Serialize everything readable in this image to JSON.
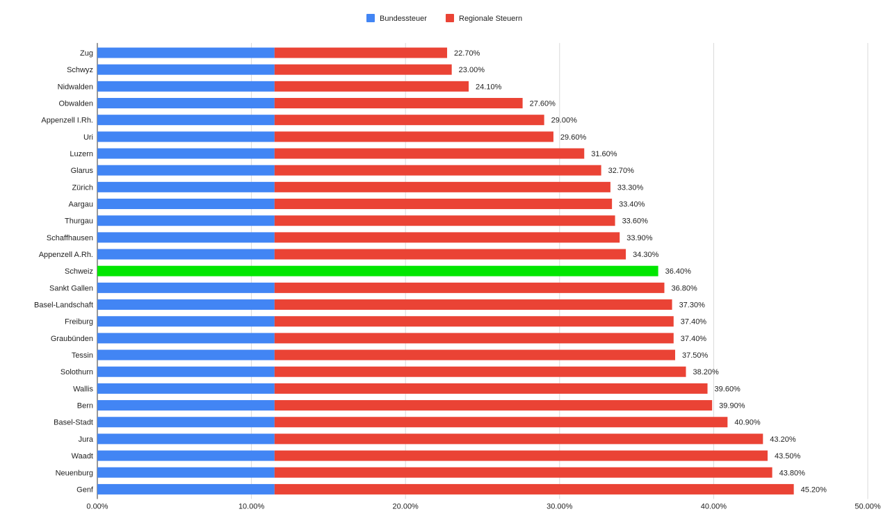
{
  "chart_data": {
    "type": "bar",
    "orientation": "horizontal",
    "stacked": true,
    "series": [
      {
        "name": "Bundessteuer",
        "color": "#4285f4"
      },
      {
        "name": "Regionale Steuern",
        "color": "#ea4335"
      }
    ],
    "highlight_color": "#00e600",
    "federal_value": 11.5,
    "categories": [
      "Zug",
      "Schwyz",
      "Nidwalden",
      "Obwalden",
      "Appenzell I.Rh.",
      "Uri",
      "Luzern",
      "Glarus",
      "Zürich",
      "Aargau",
      "Thurgau",
      "Schaffhausen",
      "Appenzell A.Rh.",
      "Schweiz",
      "Sankt Gallen",
      "Basel-Landschaft",
      "Freiburg",
      "Graubünden",
      "Tessin",
      "Solothurn",
      "Wallis",
      "Bern",
      "Basel-Stadt",
      "Jura",
      "Waadt",
      "Neuenburg",
      "Genf"
    ],
    "totals": [
      22.7,
      23.0,
      24.1,
      27.6,
      29.0,
      29.6,
      31.6,
      32.7,
      33.3,
      33.4,
      33.6,
      33.9,
      34.3,
      36.4,
      36.8,
      37.3,
      37.4,
      37.4,
      37.5,
      38.2,
      39.6,
      39.9,
      40.9,
      43.2,
      43.5,
      43.8,
      45.2
    ],
    "highlight_category": "Schweiz",
    "data_labels": [
      "22.70%",
      "23.00%",
      "24.10%",
      "27.60%",
      "29.00%",
      "29.60%",
      "31.60%",
      "32.70%",
      "33.30%",
      "33.40%",
      "33.60%",
      "33.90%",
      "34.30%",
      "36.40%",
      "36.80%",
      "37.30%",
      "37.40%",
      "37.40%",
      "37.50%",
      "38.20%",
      "39.60%",
      "39.90%",
      "40.90%",
      "43.20%",
      "43.50%",
      "43.80%",
      "45.20%"
    ],
    "xlim": [
      0,
      50
    ],
    "x_ticks": [
      0,
      10,
      20,
      30,
      40,
      50
    ],
    "x_tick_labels": [
      "0.00%",
      "10.00%",
      "20.00%",
      "30.00%",
      "40.00%",
      "50.00%"
    ],
    "grid": true,
    "legend_position": "top-center"
  }
}
